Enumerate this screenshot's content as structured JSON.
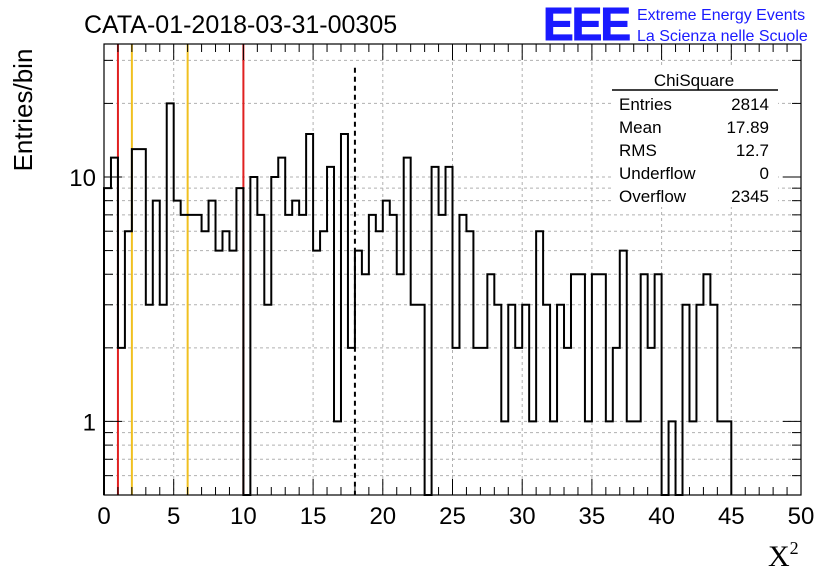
{
  "chart_data": {
    "type": "histogram",
    "title": "CATA-01-2018-03-31-00305",
    "xlabel": "X",
    "xlabel_superscript": "2",
    "ylabel": "Entries/bin",
    "yscale": "log",
    "xlim": [
      0,
      50
    ],
    "ylim": [
      0.5,
      35
    ],
    "grid": true,
    "bin_width": 0.5,
    "x_ticks": [
      0,
      5,
      10,
      15,
      20,
      25,
      30,
      35,
      40,
      45,
      50
    ],
    "x_tick_labels": [
      "0",
      "5",
      "10",
      "15",
      "20",
      "25",
      "30",
      "35",
      "40",
      "45",
      "50"
    ],
    "y_ticks": [
      1,
      10
    ],
    "y_tick_labels": [
      "1",
      "10"
    ],
    "counts": [
      9,
      12,
      2,
      6,
      13,
      13,
      3,
      8,
      3,
      20,
      8,
      7,
      7,
      7,
      6,
      8,
      5,
      6,
      5,
      9,
      0,
      10,
      7,
      3,
      10,
      12,
      7,
      8,
      7,
      15,
      5,
      6,
      11,
      1,
      15,
      2,
      5,
      4,
      7,
      6,
      8,
      7,
      4,
      12,
      3,
      3,
      0,
      11,
      7,
      11,
      2,
      7,
      6,
      2,
      2,
      4,
      3,
      1,
      3,
      2,
      3,
      1,
      6,
      3,
      1,
      3,
      2,
      4,
      4,
      1,
      4,
      4,
      1,
      2,
      5,
      1,
      1,
      4,
      2,
      4,
      0.5,
      1,
      0.5,
      3,
      1,
      3,
      4,
      3,
      1,
      1
    ],
    "vlines": [
      {
        "x": 1,
        "color": "#e02020",
        "style": "solid"
      },
      {
        "x": 2,
        "color": "#f0c020",
        "style": "solid"
      },
      {
        "x": 6,
        "color": "#f0c020",
        "style": "solid"
      },
      {
        "x": 10,
        "color": "#e02020",
        "style": "solid"
      },
      {
        "x": 18,
        "color": "#000000",
        "style": "dashed"
      }
    ]
  },
  "stats_box": {
    "title": "ChiSquare",
    "rows": [
      {
        "label": "Entries",
        "value": "2814"
      },
      {
        "label": "Mean",
        "value": "17.89"
      },
      {
        "label": "RMS",
        "value": "12.7"
      },
      {
        "label": "Underflow",
        "value": "0"
      },
      {
        "label": "Overflow",
        "value": "2345"
      }
    ]
  },
  "logo": {
    "mark": "EEE",
    "line1": "Extreme Energy Events",
    "line2": "La Scienza nelle Scuole",
    "color": "#1a1aff"
  }
}
